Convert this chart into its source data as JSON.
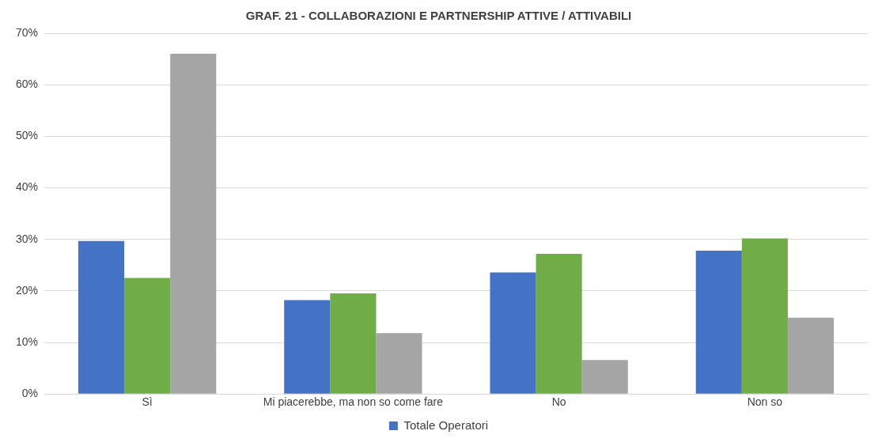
{
  "chart_data": {
    "type": "bar",
    "title": "GRAF. 21 - COLLABORAZIONI E PARTNERSHIP ATTIVE / ATTIVABILI",
    "categories": [
      "Sì",
      "Mi piacerebbe, ma non so come fare",
      "No",
      "Non so"
    ],
    "series": [
      {
        "name": "Totale Operatori",
        "color": "#4472c4",
        "values": [
          29.7,
          18.2,
          23.6,
          27.8
        ]
      },
      {
        "color": "#70ad47",
        "values": [
          22.5,
          19.5,
          27.2,
          30.2
        ]
      },
      {
        "color": "#a5a5a5",
        "values": [
          66.0,
          11.8,
          6.6,
          14.8
        ]
      }
    ],
    "ylim": [
      0,
      70
    ],
    "yticks": [
      {
        "value": 0,
        "label": "0%"
      },
      {
        "value": 10,
        "label": "10%"
      },
      {
        "value": 20,
        "label": "20%"
      },
      {
        "value": 30,
        "label": "30%"
      },
      {
        "value": 40,
        "label": "40%"
      },
      {
        "value": 50,
        "label": "50%"
      },
      {
        "value": 60,
        "label": "60%"
      },
      {
        "value": 70,
        "label": "70%"
      }
    ],
    "grid": "y",
    "legend": "bottom"
  }
}
